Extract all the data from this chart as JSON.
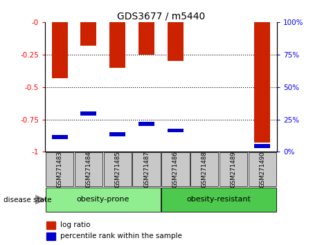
{
  "title": "GDS3677 / m5440",
  "samples": [
    "GSM271483",
    "GSM271484",
    "GSM271485",
    "GSM271487",
    "GSM271486",
    "GSM271488",
    "GSM271489",
    "GSM271490"
  ],
  "log_ratio": [
    -0.43,
    -0.18,
    -0.35,
    -0.25,
    -0.3,
    -0.005,
    -0.005,
    -0.93
  ],
  "percentile_rank_left": [
    -0.9,
    -0.72,
    -0.88,
    -0.8,
    -0.85,
    -0.005,
    -0.005,
    -0.97
  ],
  "ylim_left": [
    -1,
    0
  ],
  "yticks_left": [
    0,
    -0.25,
    -0.5,
    -0.75,
    -1
  ],
  "ytick_labels_left": [
    "-0",
    "-0.25",
    "-0.5",
    "-0.75",
    "-1"
  ],
  "yticks_right": [
    0,
    25,
    50,
    75,
    100
  ],
  "ytick_labels_right": [
    "0%",
    "25%",
    "50%",
    "75%",
    "100%"
  ],
  "group1_label": "obesity-prone",
  "group2_label": "obesity-resistant",
  "group1_indices": [
    0,
    1,
    2,
    3
  ],
  "group2_indices": [
    4,
    5,
    6,
    7
  ],
  "group1_color": "#90EE90",
  "group2_color": "#4DC94D",
  "disease_state_label": "disease state",
  "legend_log_ratio": "log ratio",
  "legend_percentile": "percentile rank within the sample",
  "bar_color_red": "#CC2200",
  "bar_color_blue": "#0000CC",
  "bar_width": 0.55,
  "blue_bar_height": 0.03,
  "bg_color_samples": "#C8C8C8",
  "title_fontsize": 10,
  "tick_fontsize": 7.5,
  "label_fontsize": 8
}
